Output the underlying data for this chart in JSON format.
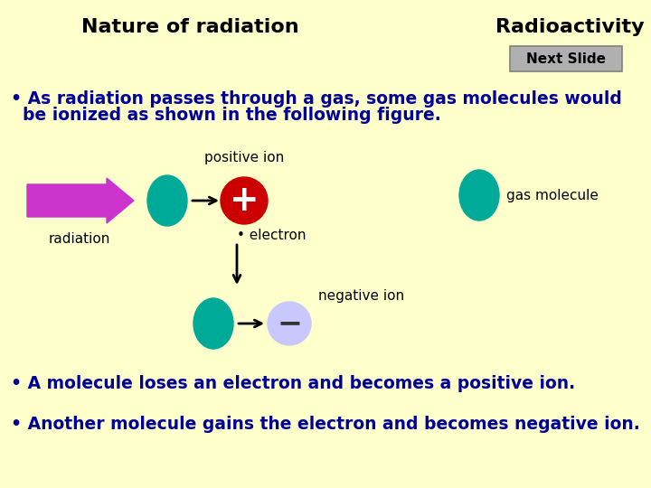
{
  "bg_color": "#FFFFCC",
  "title_left": "Nature of radiation",
  "title_right": "Radioactivity",
  "title_fontsize": 16,
  "title_color": "#000000",
  "next_slide_text": "Next Slide",
  "next_slide_box_color": "#B0B0B0",
  "next_slide_edge_color": "#808080",
  "bullet1_line1": "• As radiation passes through a gas, some gas molecules would",
  "bullet1_line2": "  be ionized as shown in the following figure.",
  "bullet2": "• A molecule loses an electron and becomes a positive ion.",
  "bullet3": "• Another molecule gains the electron and becomes negative ion.",
  "bullet_color": "#000099",
  "bullet_fontsize": 13.5,
  "teal_color": "#00AA99",
  "magenta_color": "#CC33CC",
  "red_color": "#CC0000",
  "lavender_color": "#C8C8FF",
  "label_color": "#000000",
  "label_fontsize": 11,
  "radiation_label_color": "#000000",
  "radiation_label_fontsize": 11
}
